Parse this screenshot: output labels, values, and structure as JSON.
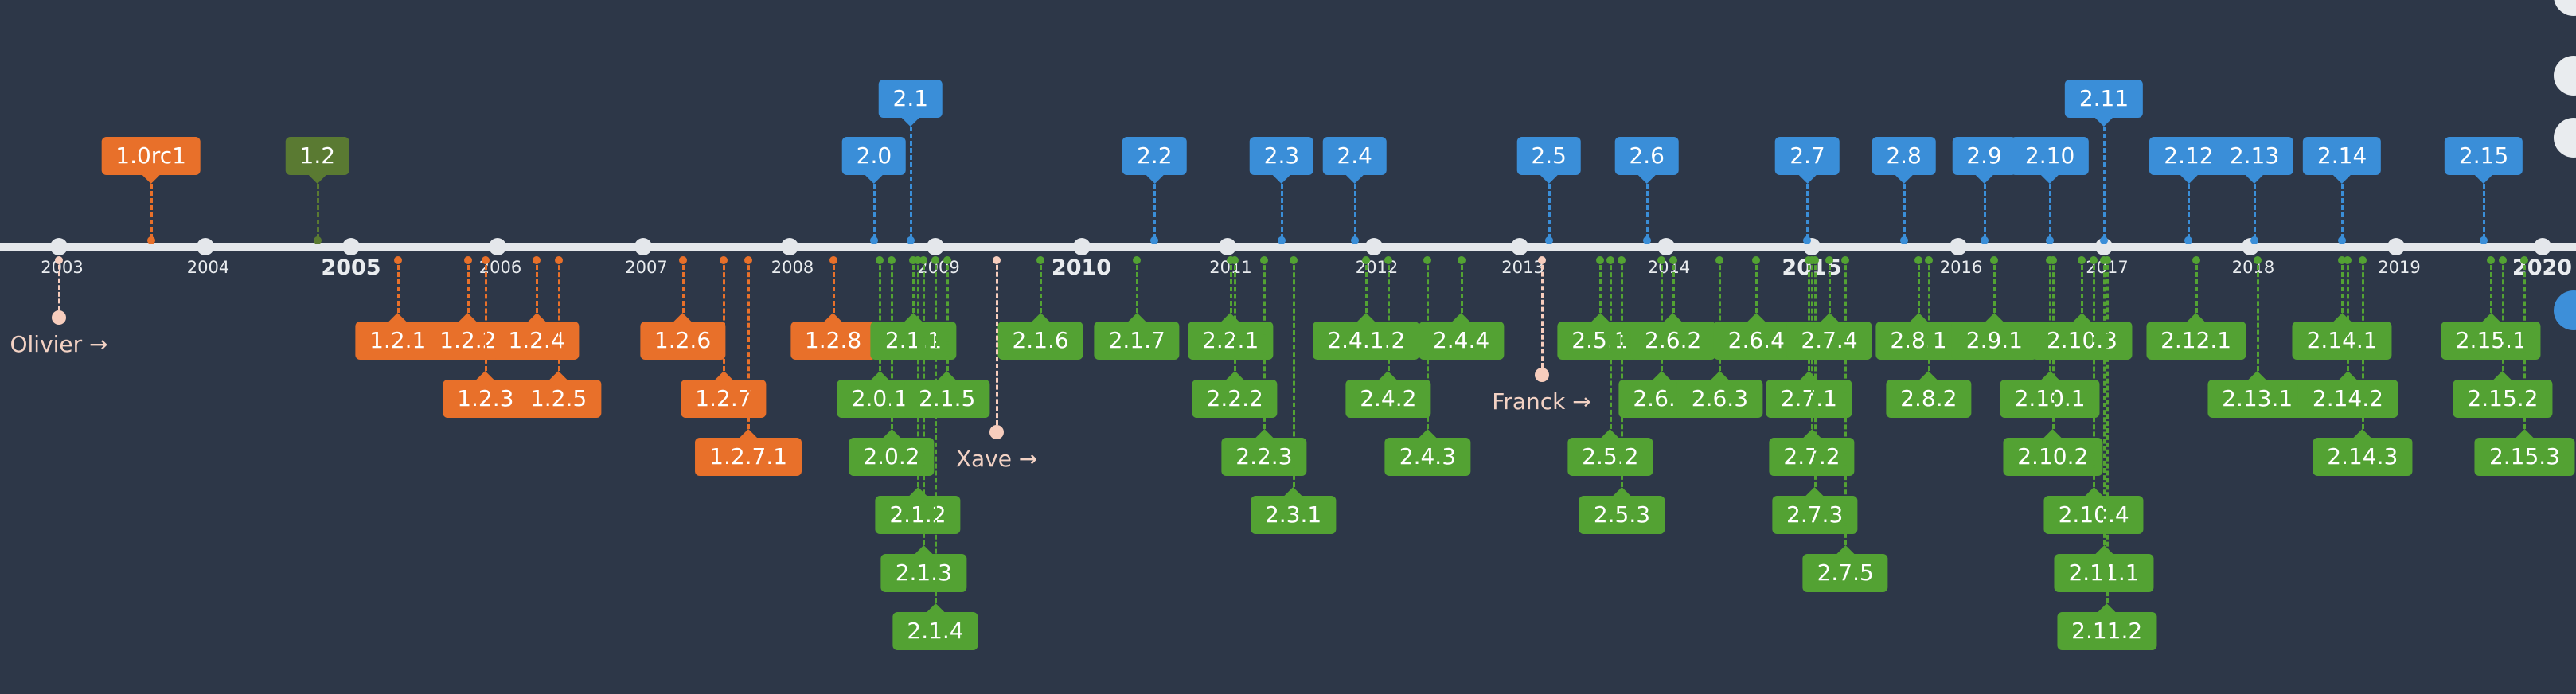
{
  "colors": {
    "background": "#2d3748",
    "axis": "#e4e7eb",
    "orange": "#e8702a",
    "darkgreen": "#5a7a32",
    "blue": "#3a8ed8",
    "green": "#53a233",
    "person": "#f7cdbd"
  },
  "years": [
    {
      "label": "2003",
      "major": false
    },
    {
      "label": "2004",
      "major": false
    },
    {
      "label": "2005",
      "major": true
    },
    {
      "label": "2006",
      "major": false
    },
    {
      "label": "2007",
      "major": false
    },
    {
      "label": "2008",
      "major": false
    },
    {
      "label": "2009",
      "major": false
    },
    {
      "label": "2010",
      "major": true
    },
    {
      "label": "2011",
      "major": false
    },
    {
      "label": "2012",
      "major": false
    },
    {
      "label": "2013",
      "major": false
    },
    {
      "label": "2014",
      "major": false
    },
    {
      "label": "2015",
      "major": true
    },
    {
      "label": "2016",
      "major": false
    },
    {
      "label": "2017",
      "major": false
    },
    {
      "label": "2018",
      "major": false
    },
    {
      "label": "2019",
      "major": false
    },
    {
      "label": "2020",
      "major": true
    }
  ],
  "releases_above": [
    {
      "label": "1.0rc1",
      "date": 2003.63,
      "color": "orange",
      "level": 1
    },
    {
      "label": "1.2",
      "date": 2004.77,
      "color": "darkgreen",
      "level": 1
    },
    {
      "label": "2.0",
      "date": 2008.58,
      "color": "blue",
      "level": 1
    },
    {
      "label": "2.1",
      "date": 2008.83,
      "color": "blue",
      "level": 2
    },
    {
      "label": "2.2",
      "date": 2010.5,
      "color": "blue",
      "level": 1
    },
    {
      "label": "2.3",
      "date": 2011.37,
      "color": "blue",
      "level": 1
    },
    {
      "label": "2.4",
      "date": 2011.87,
      "color": "blue",
      "level": 1
    },
    {
      "label": "2.5",
      "date": 2013.2,
      "color": "blue",
      "level": 1
    },
    {
      "label": "2.6",
      "date": 2013.87,
      "color": "blue",
      "level": 1
    },
    {
      "label": "2.7",
      "date": 2014.97,
      "color": "blue",
      "level": 1
    },
    {
      "label": "2.8",
      "date": 2015.63,
      "color": "blue",
      "level": 1
    },
    {
      "label": "2.9",
      "date": 2016.18,
      "color": "blue",
      "level": 1
    },
    {
      "label": "2.10",
      "date": 2016.63,
      "color": "blue",
      "level": 1
    },
    {
      "label": "2.11",
      "date": 2017.0,
      "color": "blue",
      "level": 2
    },
    {
      "label": "2.12",
      "date": 2017.58,
      "color": "blue",
      "level": 1
    },
    {
      "label": "2.13",
      "date": 2018.03,
      "color": "blue",
      "level": 1
    },
    {
      "label": "2.14",
      "date": 2018.63,
      "color": "blue",
      "level": 1
    },
    {
      "label": "2.15",
      "date": 2019.6,
      "color": "blue",
      "level": 1
    }
  ],
  "releases_below": [
    {
      "label": "1.2.1",
      "date": 2005.32,
      "color": "orange",
      "level": 1
    },
    {
      "label": "1.2.2",
      "date": 2005.8,
      "color": "orange",
      "level": 1
    },
    {
      "label": "1.2.3",
      "date": 2005.92,
      "color": "orange",
      "level": 2
    },
    {
      "label": "1.2.4",
      "date": 2006.27,
      "color": "orange",
      "level": 1
    },
    {
      "label": "1.2.5",
      "date": 2006.42,
      "color": "orange",
      "level": 2
    },
    {
      "label": "1.2.6",
      "date": 2007.27,
      "color": "orange",
      "level": 1
    },
    {
      "label": "1.2.7",
      "date": 2007.55,
      "color": "orange",
      "level": 2
    },
    {
      "label": "1.2.7.1",
      "date": 2007.72,
      "color": "orange",
      "level": 3
    },
    {
      "label": "1.2.8",
      "date": 2008.3,
      "color": "orange",
      "level": 1
    },
    {
      "label": "2.0.1",
      "date": 2008.62,
      "color": "green",
      "level": 2
    },
    {
      "label": "2.0.2",
      "date": 2008.7,
      "color": "green",
      "level": 3
    },
    {
      "label": "2.1.1",
      "date": 2008.85,
      "color": "green",
      "level": 1
    },
    {
      "label": "2.1.2",
      "date": 2008.88,
      "color": "green",
      "level": 4
    },
    {
      "label": "2.1.3",
      "date": 2008.92,
      "color": "green",
      "level": 5
    },
    {
      "label": "2.1.4",
      "date": 2009.0,
      "color": "green",
      "level": 6
    },
    {
      "label": "2.1.5",
      "date": 2009.08,
      "color": "green",
      "level": 2
    },
    {
      "label": "2.1.6",
      "date": 2009.72,
      "color": "green",
      "level": 1
    },
    {
      "label": "2.1.7",
      "date": 2010.38,
      "color": "green",
      "level": 1
    },
    {
      "label": "2.2.1",
      "date": 2011.02,
      "color": "green",
      "level": 1
    },
    {
      "label": "2.2.2",
      "date": 2011.05,
      "color": "green",
      "level": 2
    },
    {
      "label": "2.2.3",
      "date": 2011.25,
      "color": "green",
      "level": 3
    },
    {
      "label": "2.3.1",
      "date": 2011.45,
      "color": "green",
      "level": 4
    },
    {
      "label": "2.4.1.2",
      "date": 2011.95,
      "color": "green",
      "level": 1
    },
    {
      "label": "2.4.2",
      "date": 2012.1,
      "color": "green",
      "level": 2
    },
    {
      "label": "2.4.3",
      "date": 2012.37,
      "color": "green",
      "level": 3
    },
    {
      "label": "2.4.4",
      "date": 2012.6,
      "color": "green",
      "level": 1
    },
    {
      "label": "2.5.1",
      "date": 2013.55,
      "color": "green",
      "level": 1
    },
    {
      "label": "2.5.2",
      "date": 2013.62,
      "color": "green",
      "level": 3
    },
    {
      "label": "2.5.3",
      "date": 2013.7,
      "color": "green",
      "level": 4
    },
    {
      "label": "2.6.1",
      "date": 2013.97,
      "color": "green",
      "level": 2
    },
    {
      "label": "2.6.2",
      "date": 2014.05,
      "color": "green",
      "level": 1
    },
    {
      "label": "2.6.3",
      "date": 2014.37,
      "color": "green",
      "level": 2
    },
    {
      "label": "2.6.4",
      "date": 2014.62,
      "color": "green",
      "level": 1
    },
    {
      "label": "2.7.1",
      "date": 2014.98,
      "color": "green",
      "level": 2
    },
    {
      "label": "2.7.2",
      "date": 2015.0,
      "color": "green",
      "level": 3
    },
    {
      "label": "2.7.3",
      "date": 2015.02,
      "color": "green",
      "level": 4
    },
    {
      "label": "2.7.4",
      "date": 2015.12,
      "color": "green",
      "level": 1
    },
    {
      "label": "2.7.5",
      "date": 2015.23,
      "color": "green",
      "level": 5
    },
    {
      "label": "2.8.1",
      "date": 2015.73,
      "color": "green",
      "level": 1
    },
    {
      "label": "2.8.2",
      "date": 2015.8,
      "color": "green",
      "level": 2
    },
    {
      "label": "2.9.1",
      "date": 2016.25,
      "color": "green",
      "level": 1
    },
    {
      "label": "2.10.1",
      "date": 2016.63,
      "color": "green",
      "level": 2
    },
    {
      "label": "2.10.2",
      "date": 2016.65,
      "color": "green",
      "level": 3
    },
    {
      "label": "2.10.3",
      "date": 2016.85,
      "color": "green",
      "level": 1
    },
    {
      "label": "2.10.4",
      "date": 2016.93,
      "color": "green",
      "level": 4
    },
    {
      "label": "2.11.1",
      "date": 2017.0,
      "color": "green",
      "level": 5
    },
    {
      "label": "2.11.2",
      "date": 2017.02,
      "color": "green",
      "level": 6
    },
    {
      "label": "2.12.1",
      "date": 2017.63,
      "color": "green",
      "level": 1
    },
    {
      "label": "2.13.1",
      "date": 2018.05,
      "color": "green",
      "level": 2
    },
    {
      "label": "2.14.1",
      "date": 2018.63,
      "color": "green",
      "level": 1
    },
    {
      "label": "2.14.2",
      "date": 2018.67,
      "color": "green",
      "level": 2
    },
    {
      "label": "2.14.3",
      "date": 2018.77,
      "color": "green",
      "level": 3
    },
    {
      "label": "2.15.1",
      "date": 2019.65,
      "color": "green",
      "level": 1
    },
    {
      "label": "2.15.2",
      "date": 2019.73,
      "color": "green",
      "level": 2
    },
    {
      "label": "2.15.3",
      "date": 2019.88,
      "color": "green",
      "level": 3
    }
  ],
  "people": [
    {
      "label": "Olivier →",
      "date": 2003.0,
      "level": 1
    },
    {
      "label": "Xave →",
      "date": 2009.42,
      "level": 3
    },
    {
      "label": "Franck →",
      "date": 2013.15,
      "level": 2
    }
  ]
}
